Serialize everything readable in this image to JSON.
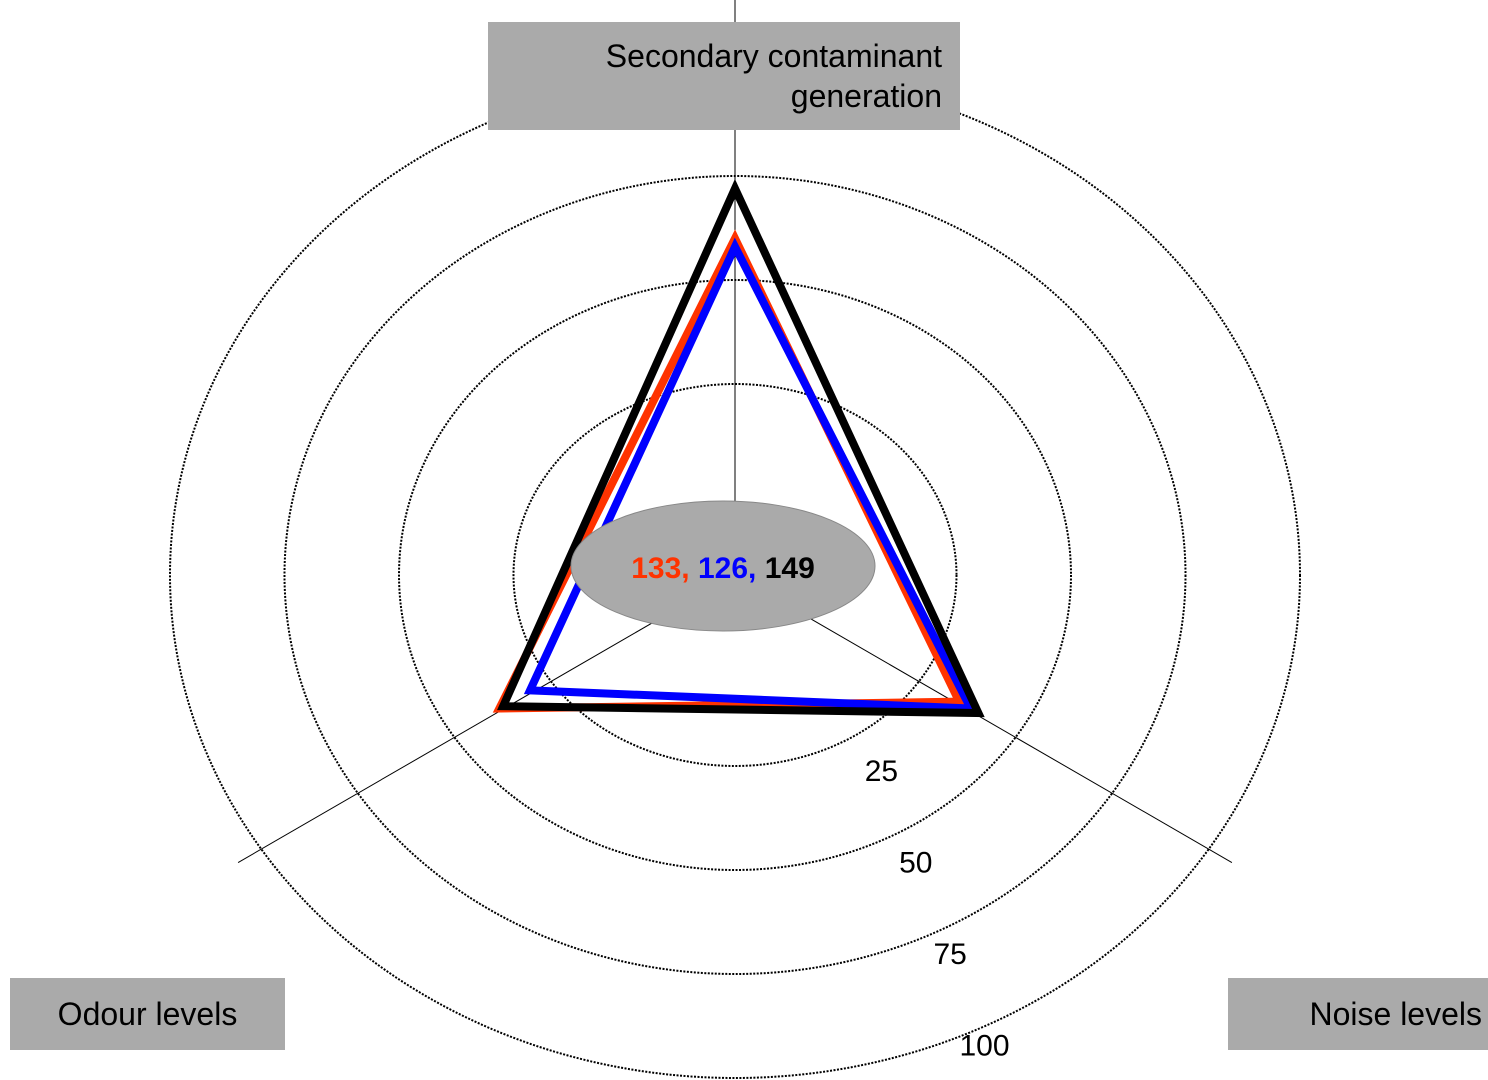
{
  "chart_data": {
    "type": "radar",
    "categories": [
      "Secondary contaminant generation",
      "Odour levels",
      "Noise levels"
    ],
    "series": [
      {
        "color": "#ff3300",
        "values": [
          60,
          38,
          35
        ]
      },
      {
        "color": "#0000ff",
        "values": [
          58,
          30,
          38
        ]
      },
      {
        "color": "#000000",
        "values": [
          72,
          37,
          40
        ]
      }
    ],
    "ylim": [
      0,
      100
    ],
    "yticks": [
      25,
      50,
      75,
      100
    ],
    "annotations": [
      {
        "text": "133,",
        "color": "#ff3300"
      },
      {
        "text": "126,",
        "color": "#0000ff"
      },
      {
        "text": "149",
        "color": "#000000"
      }
    ]
  }
}
